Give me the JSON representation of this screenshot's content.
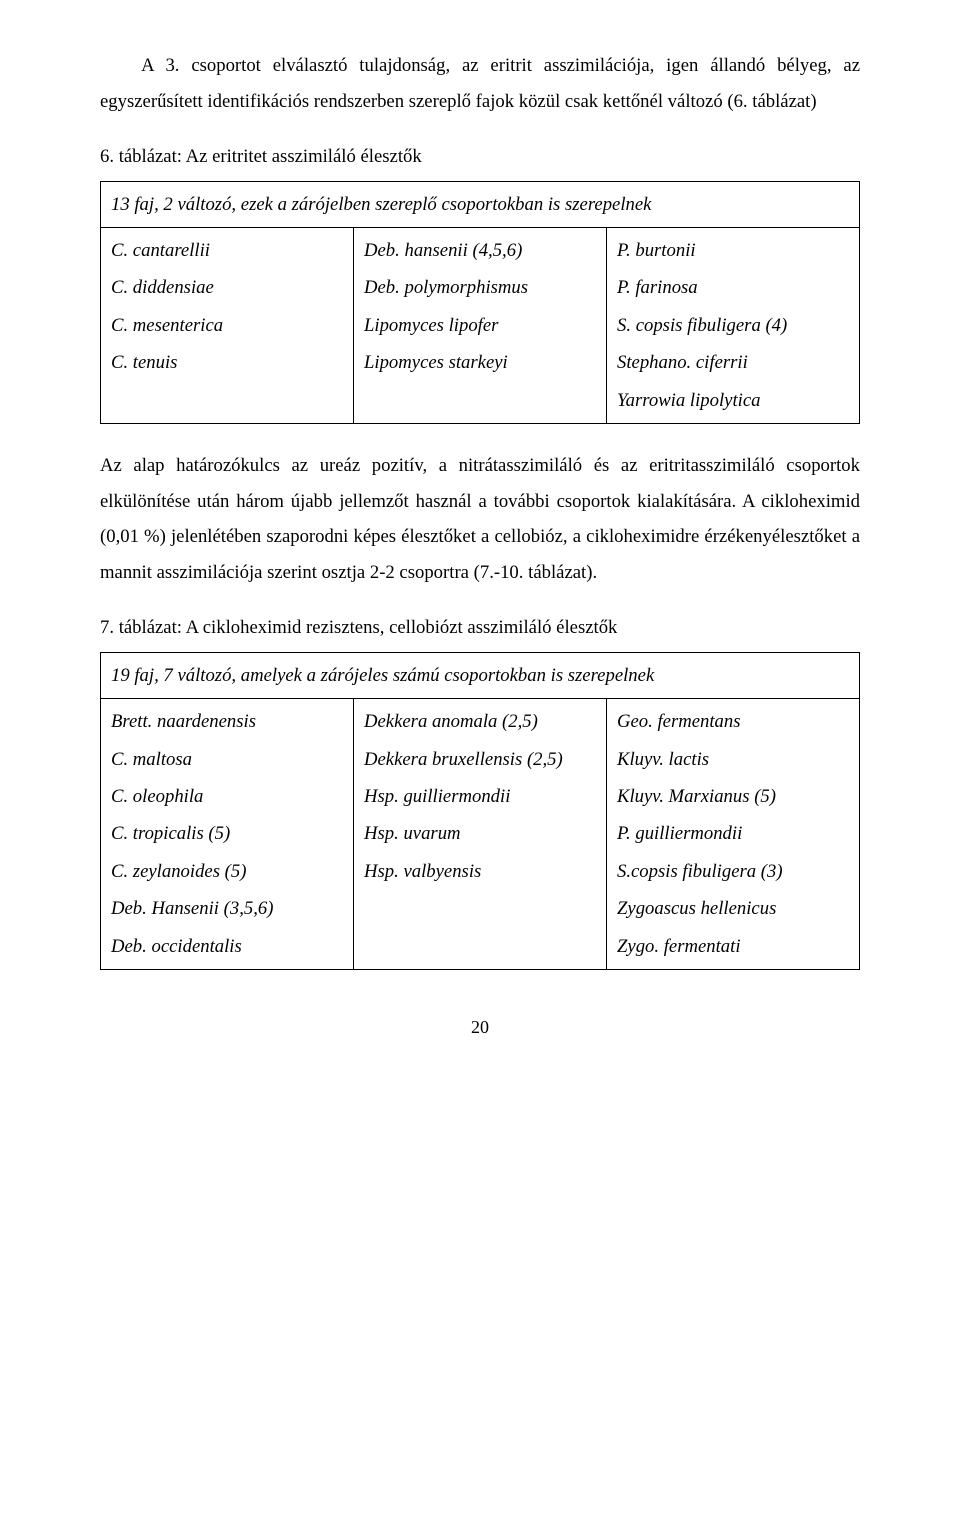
{
  "paragraphs": {
    "p1": "A 3. csoportot elválasztó tulajdonság, az eritrit asszimilációja, igen állandó bélyeg, az egyszerűsített identifikációs rendszerben szereplő fajok közül csak kettőnél változó (6. táblázat)",
    "p2": "Az alap határozókulcs az ureáz pozitív, a nitrátasszimiláló és az eritritasszimiláló csoportok elkülönítése után három újabb jellemzőt használ a további csoportok kialakítására. A cikloheximid (0,01 %) jelenlétében szaporodni képes élesztőket a cellobióz, a cikloheximidre érzékenyélesztőket a mannit asszimilációja szerint osztja 2-2 csoportra (7.-10. táblázat)."
  },
  "table6": {
    "caption_num": "6. táblázat",
    "caption_rest": ": Az eritritet asszimiláló élesztők",
    "subheader": "13 faj, 2 változó, ezek a zárójelben szereplő csoportokban is szerepelnek",
    "col1": [
      "C. cantarellii",
      "C. diddensiae",
      "C. mesenterica",
      "C. tenuis"
    ],
    "col2": [
      "Deb. hansenii (4,5,6)",
      "Deb. polymorphismus",
      "Lipomyces lipofer",
      "Lipomyces starkeyi"
    ],
    "col3": [
      "P. burtonii",
      "P. farinosa",
      "S. copsis fibuligera (4)",
      "Stephano. ciferrii",
      "Yarrowia lipolytica"
    ]
  },
  "table7": {
    "caption_num": "7. táblázat",
    "caption_rest": ": A cikloheximid rezisztens, cellobiózt asszimiláló élesztők",
    "subheader": "19 faj, 7 változó, amelyek a zárójeles számú csoportokban is szerepelnek",
    "col1": [
      "Brett. naardenensis",
      "C. maltosa",
      "C. oleophila",
      "C. tropicalis (5)",
      "C. zeylanoides (5)",
      "Deb. Hansenii (3,5,6)",
      "Deb. occidentalis"
    ],
    "col2": [
      "Dekkera anomala (2,5)",
      "Dekkera bruxellensis (2,5)",
      "Hsp. guilliermondii",
      "Hsp. uvarum",
      "Hsp. valbyensis",
      "",
      ""
    ],
    "col3": [
      "Geo. fermentans",
      "Kluyv. lactis",
      "Kluyv. Marxianus (5)",
      "P. guilliermondii",
      "S.copsis fibuligera (3)",
      "Zygoascus hellenicus",
      "Zygo. fermentati"
    ]
  },
  "page_number": "20"
}
